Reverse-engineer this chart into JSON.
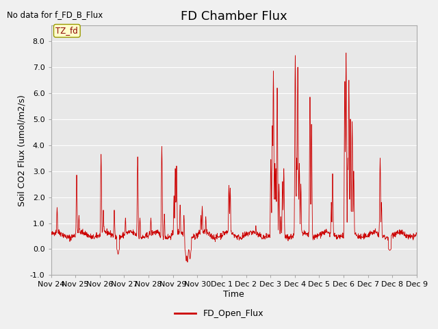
{
  "title": "FD Chamber Flux",
  "no_data_text": "No data for f_FD_B_Flux",
  "ylabel": "Soil CO2 Flux (umol/m2/s)",
  "xlabel": "Time",
  "ylim": [
    -1.0,
    8.6
  ],
  "yticks": [
    -1.0,
    0.0,
    1.0,
    2.0,
    3.0,
    4.0,
    5.0,
    6.0,
    7.0,
    8.0
  ],
  "line_color": "#cc0000",
  "legend_label": "FD_Open_Flux",
  "tz_label": "TZ_fd",
  "fig_facecolor": "#f0f0f0",
  "plot_facecolor": "#e8e8e8",
  "grid_color": "#ffffff",
  "tick_labels": [
    "Nov 24",
    "Nov 25",
    "Nov 26",
    "Nov 27",
    "Nov 28",
    "Nov 29",
    "Nov 30",
    "Dec 1",
    "Dec 2",
    "Dec 3",
    "Dec 4",
    "Dec 5",
    "Dec 6",
    "Dec 7",
    "Dec 8",
    "Dec 9"
  ],
  "tick_positions": [
    0,
    1,
    2,
    3,
    4,
    5,
    6,
    7,
    8,
    9,
    10,
    11,
    12,
    13,
    14,
    15
  ],
  "title_fontsize": 13,
  "label_fontsize": 9,
  "tick_fontsize": 8,
  "legend_fontsize": 9
}
